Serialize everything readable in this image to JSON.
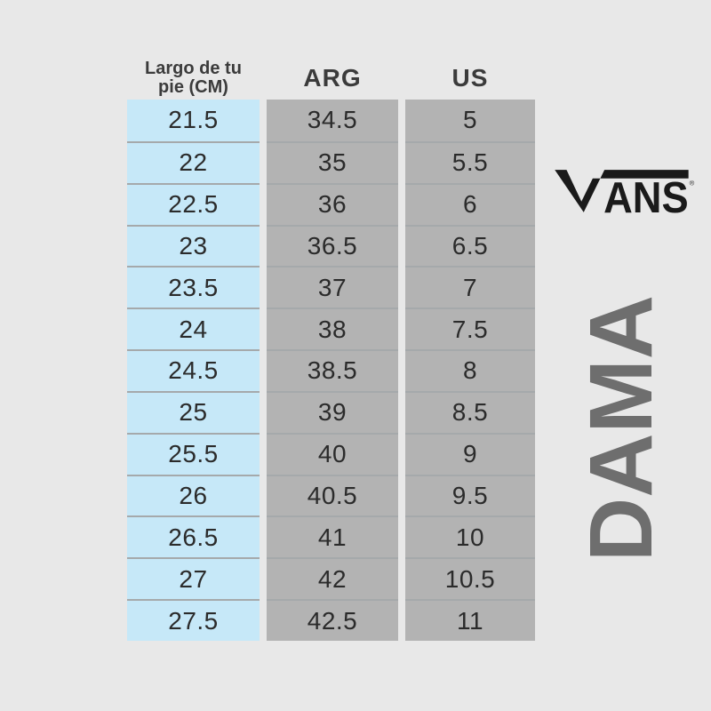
{
  "page": {
    "background_color": "#e8e8e8"
  },
  "branding": {
    "logo_text": "VANS",
    "registered_mark": "®",
    "vertical_label": "DAMA",
    "logo_color": "#1a1a1a",
    "vertical_label_color": "#6e6e6e"
  },
  "table": {
    "column_headers": [
      {
        "label": "Largo de tu pie (CM)"
      },
      {
        "label": "ARG"
      },
      {
        "label": "US"
      }
    ],
    "colors": {
      "cm_column_bg": "#c6e8f8",
      "size_column_bg": "#b3b3b3",
      "row_divider": "#a5a9ab",
      "cell_text": "#2b2b2b",
      "header_text": "#3b3b3b"
    }
  },
  "chart_data": {
    "type": "table",
    "columns": [
      "Largo de tu pie (CM)",
      "ARG",
      "US"
    ],
    "rows": [
      [
        21.5,
        34.5,
        5
      ],
      [
        22,
        35,
        5.5
      ],
      [
        22.5,
        36,
        6
      ],
      [
        23,
        36.5,
        6.5
      ],
      [
        23.5,
        37,
        7
      ],
      [
        24,
        38,
        7.5
      ],
      [
        24.5,
        38.5,
        8
      ],
      [
        25,
        39,
        8.5
      ],
      [
        25.5,
        40,
        9
      ],
      [
        26,
        40.5,
        9.5
      ],
      [
        26.5,
        41,
        10
      ],
      [
        27,
        42,
        10.5
      ],
      [
        27.5,
        42.5,
        11
      ]
    ]
  }
}
